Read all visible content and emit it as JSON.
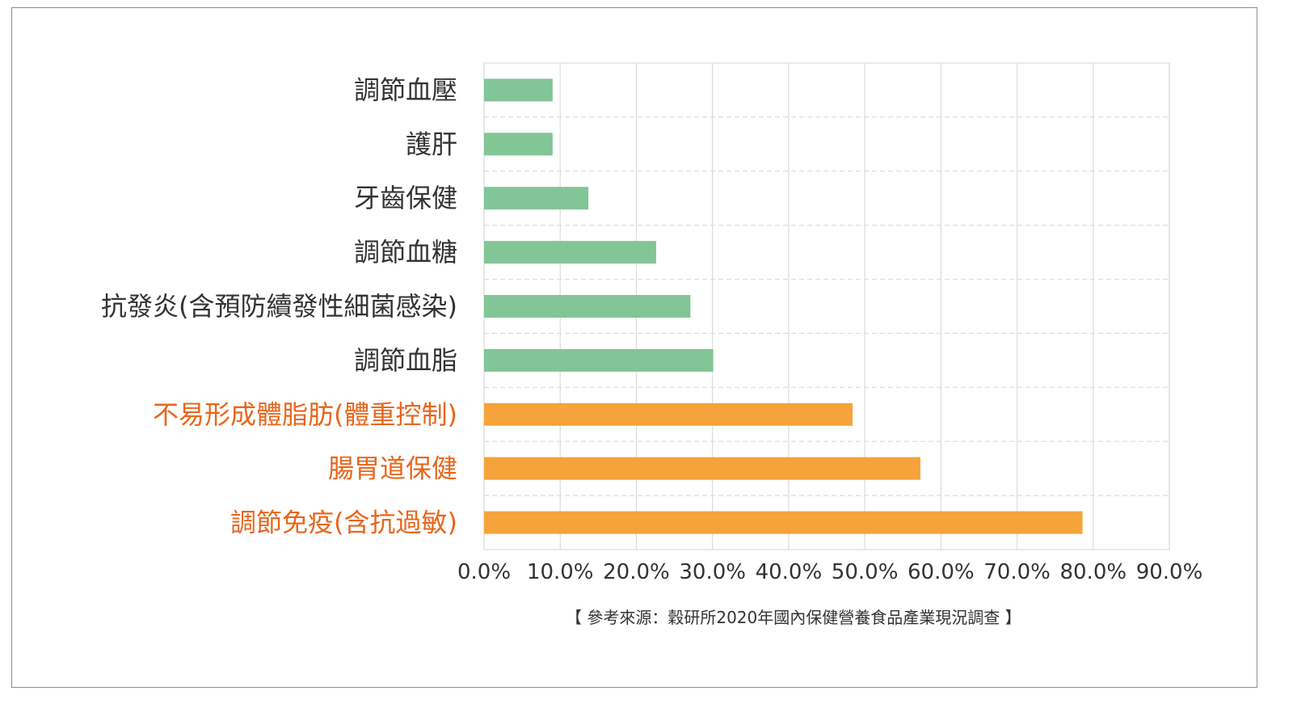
{
  "chart_data": {
    "type": "bar",
    "orientation": "horizontal",
    "categories": [
      "調節血壓",
      "護肝",
      "牙齒保健",
      "調節血糖",
      "抗發炎(含預防續發性細菌感染)",
      "調節血脂",
      "不易形成體脂肪(體重控制)",
      "腸胃道保健",
      "調節免疫(含抗過敏)"
    ],
    "values": [
      9.0,
      9.0,
      13.7,
      22.6,
      27.1,
      30.1,
      48.4,
      57.3,
      78.6
    ],
    "highlighted": [
      false,
      false,
      false,
      false,
      false,
      false,
      true,
      true,
      true
    ],
    "xlim": [
      0,
      90
    ],
    "xticks": [
      "0.0%",
      "10.0%",
      "20.0%",
      "30.0%",
      "40.0%",
      "50.0%",
      "60.0%",
      "70.0%",
      "80.0%",
      "90.0%"
    ],
    "grid": true,
    "legend": "none"
  },
  "colors": {
    "bar_default": "#82c596",
    "bar_highlight": "#f5a33a",
    "label_default": "#333333",
    "label_highlight": "#e8661c",
    "grid": "#dcdcdc"
  },
  "source_note": "【 參考來源：穀研所2020年國內保健營養食品產業現況調查 】"
}
